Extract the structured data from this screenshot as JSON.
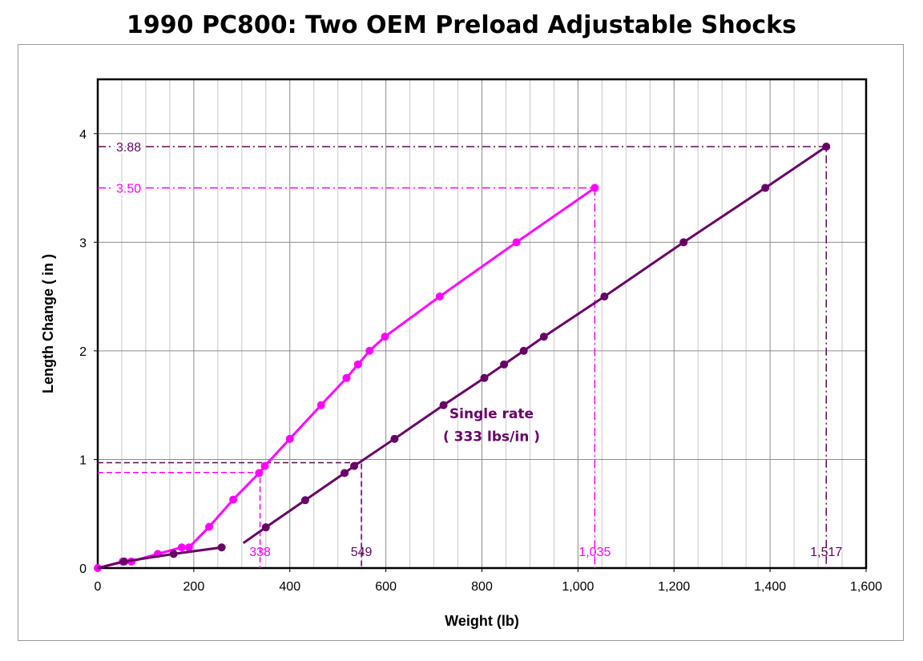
{
  "chart_data": {
    "type": "line",
    "title": "1990 PC800:  Two OEM Preload Adjustable Shocks",
    "xlabel": "Weight (lb)",
    "ylabel": "Length Change  ( in )",
    "xlim": [
      0,
      1600
    ],
    "ylim": [
      0,
      4.5
    ],
    "x_ticks": [
      0,
      200,
      400,
      600,
      800,
      1000,
      1200,
      1400,
      1600
    ],
    "x_tick_labels": [
      "0",
      "200",
      "400",
      "600",
      "800",
      "1,000",
      "1,200",
      "1,400",
      "1,600"
    ],
    "y_ticks": [
      0,
      1,
      2,
      3,
      4
    ],
    "y_tick_labels": [
      "0",
      "1",
      "2",
      "3",
      "4"
    ],
    "grid": true,
    "minor_x_grid_step": 50,
    "series": [
      {
        "color": "#ff00ff",
        "points": [
          [
            0,
            0
          ],
          [
            52,
            0.06
          ],
          [
            70,
            0.06
          ],
          [
            125,
            0.13
          ],
          [
            175,
            0.19
          ],
          [
            190,
            0.19
          ],
          [
            232,
            0.38
          ],
          [
            282,
            0.63
          ],
          [
            336,
            0.875
          ],
          [
            348,
            0.94
          ],
          [
            400,
            1.19
          ],
          [
            465,
            1.5
          ],
          [
            518,
            1.75
          ],
          [
            542,
            1.875
          ],
          [
            566,
            2.0
          ],
          [
            598,
            2.13
          ],
          [
            712,
            2.5
          ],
          [
            872,
            3.0
          ],
          [
            1035,
            3.5
          ]
        ],
        "line_from": [
          0,
          0
        ]
      },
      {
        "color": "#660066",
        "points": [
          [
            55,
            0.06
          ],
          [
            158,
            0.13
          ],
          [
            258,
            0.19
          ]
        ],
        "line_from": [
          0,
          0
        ]
      },
      {
        "color": "#660066",
        "points": [
          [
            350,
            0.375
          ],
          [
            432,
            0.625
          ],
          [
            514,
            0.875
          ],
          [
            534,
            0.94
          ],
          [
            618,
            1.19
          ],
          [
            720,
            1.5
          ],
          [
            805,
            1.75
          ],
          [
            846,
            1.875
          ],
          [
            887,
            2.0
          ],
          [
            929,
            2.13
          ],
          [
            1055,
            2.5
          ],
          [
            1220,
            3.0
          ],
          [
            1390,
            3.5
          ],
          [
            1517,
            3.88
          ]
        ],
        "line_from": [
          303,
          0.23
        ]
      }
    ],
    "reference_lines": [
      {
        "label": "3.50",
        "x": 1035,
        "y": 3.5,
        "color": "#ff00ff",
        "style": "dashdot"
      },
      {
        "label": "3.88",
        "x": 1517,
        "y": 3.88,
        "color": "#660066",
        "style": "dashdot"
      },
      {
        "label": "",
        "x": 338,
        "y": 0.88,
        "color": "#ff00ff",
        "style": "dash"
      },
      {
        "label": "",
        "x": 549,
        "y": 0.97,
        "color": "#660066",
        "style": "dash"
      }
    ],
    "x_annotations": [
      {
        "text": "338",
        "x": 338,
        "color": "#ff00ff"
      },
      {
        "text": "549",
        "x": 549,
        "color": "#660066"
      },
      {
        "text": "1,035",
        "x": 1035,
        "color": "#ff00ff"
      },
      {
        "text": "1,517",
        "x": 1517,
        "color": "#660066"
      }
    ],
    "text_annotations": [
      {
        "text": "Single rate",
        "x": 820,
        "y": 1.38,
        "color": "#660066",
        "weight": "bold"
      },
      {
        "text": "( 333 lbs/in )",
        "x": 820,
        "y": 1.17,
        "color": "#660066",
        "weight": "bold"
      }
    ]
  }
}
